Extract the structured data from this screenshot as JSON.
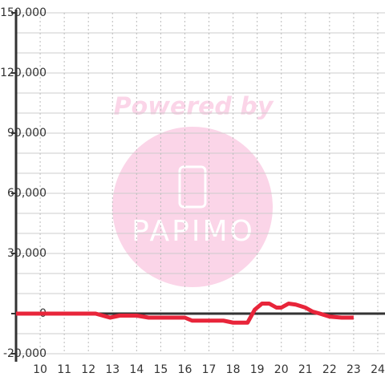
{
  "chart_data": {
    "type": "line",
    "x": [
      9,
      10,
      11,
      12,
      12.3,
      12.9,
      13.3,
      14,
      14.5,
      15,
      16,
      16.3,
      17,
      17.6,
      18,
      18.6,
      18.9,
      19.2,
      19.5,
      19.8,
      20,
      20.3,
      20.6,
      21,
      21.3,
      21.6,
      22,
      22.5,
      23
    ],
    "series": [
      {
        "color": "#e8253a",
        "values": [
          0,
          0,
          0,
          0,
          0,
          -2000,
          -1000,
          -1000,
          -2000,
          -2000,
          -2000,
          -3500,
          -3500,
          -3500,
          -4500,
          -4500,
          2000,
          5000,
          5000,
          3000,
          3000,
          5000,
          4500,
          3000,
          1000,
          0,
          -1500,
          -2000,
          -2000
        ]
      }
    ],
    "xlim": [
      9,
      24.3
    ],
    "xticks": [
      10,
      11,
      12,
      13,
      14,
      15,
      16,
      17,
      18,
      19,
      20,
      21,
      22,
      23,
      24
    ],
    "ylim": [
      -20000,
      150000
    ],
    "yticks": [
      {
        "value": -20000,
        "label": "-20,000"
      },
      0,
      {
        "value": 30000,
        "label": "30,000"
      },
      {
        "value": 60000,
        "label": "60,000"
      },
      {
        "value": 90000,
        "label": "90,000"
      },
      {
        "value": 120000,
        "label": "120,000"
      },
      {
        "value": 150000,
        "label": "150,000"
      }
    ],
    "ygrid": [
      -20000,
      -10000,
      0,
      10000,
      20000,
      30000,
      40000,
      50000,
      60000,
      70000,
      80000,
      90000,
      100000,
      110000,
      120000,
      130000,
      140000,
      150000
    ],
    "grid": true
  },
  "watermark": {
    "caption": "Powered by",
    "logo": "PAPIMO"
  }
}
